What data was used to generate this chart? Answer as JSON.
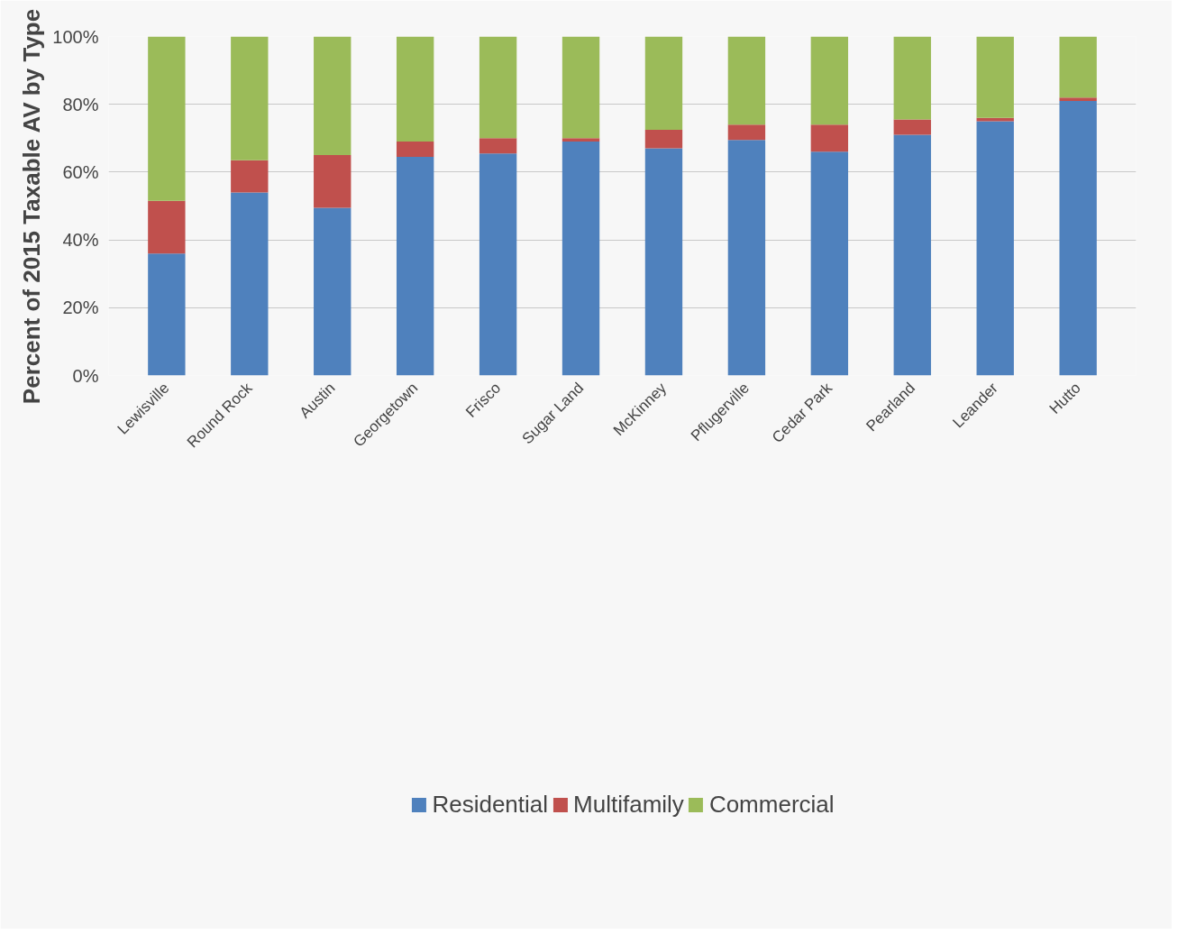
{
  "chart_data": {
    "type": "bar",
    "stacked": true,
    "ylabel": "Percent of 2015 Taxable AV by Type",
    "categories": [
      "Lewisville",
      "Round Rock",
      "Austin",
      "Georgetown",
      "Frisco",
      "Sugar Land",
      "McKinney",
      "Pflugerville",
      "Cedar Park",
      "Pearland",
      "Leander",
      "Hutto"
    ],
    "series": [
      {
        "name": "Residential",
        "color": "#4f81bd",
        "values": [
          36,
          54,
          49.5,
          64.5,
          65.5,
          69,
          67,
          69.5,
          66,
          71,
          75,
          81
        ]
      },
      {
        "name": "Multifamily",
        "color": "#c0504d",
        "values": [
          15.5,
          9.5,
          15.5,
          4.5,
          4.5,
          1,
          5.5,
          4.5,
          8,
          4.5,
          1,
          1
        ]
      },
      {
        "name": "Commercial",
        "color": "#9bbb59",
        "values": [
          48.5,
          36.5,
          35,
          31,
          30,
          30,
          27.5,
          26,
          26,
          24.5,
          24,
          18
        ]
      }
    ],
    "ylim": [
      0,
      100
    ],
    "yticks": [
      {
        "value": 0,
        "label": "0%"
      },
      {
        "value": 20,
        "label": "20%"
      },
      {
        "value": 40,
        "label": "40%"
      },
      {
        "value": 60,
        "label": "60%"
      },
      {
        "value": 80,
        "label": "80%"
      },
      {
        "value": 100,
        "label": "100%"
      }
    ],
    "grid": "y",
    "legend": "bottom"
  }
}
